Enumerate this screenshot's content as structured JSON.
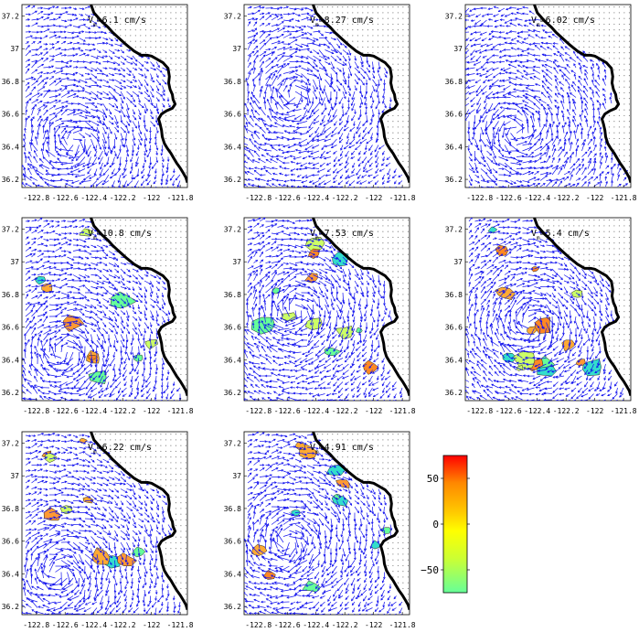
{
  "figure": {
    "x_ticks": [
      "-122.8",
      "-122.6",
      "-122.4",
      "-122.2",
      "-122",
      "-121.8"
    ],
    "y_ticks": [
      "37.2",
      "37",
      "36.8",
      "36.6",
      "36.4",
      "36.2"
    ],
    "x_values": [
      -122.8,
      -122.6,
      -122.4,
      -122.2,
      -122.0,
      -121.8
    ],
    "y_values": [
      37.2,
      37.0,
      36.8,
      36.6,
      36.4,
      36.2
    ],
    "lon_range": [
      -122.9,
      -121.75
    ],
    "lat_range": [
      36.15,
      37.27
    ],
    "speed_symbol": "V",
    "speed_subscript": "m",
    "vector_color": "#1111ee",
    "coast_color": "#000000"
  },
  "panels": [
    {
      "id": "p1",
      "vm_value": "=6.1 cm/s",
      "eddy_lon": -122.55,
      "eddy_lat": 36.42,
      "eddy_sense": 1,
      "patch_count": 0
    },
    {
      "id": "p2",
      "vm_value": "=8.27 cm/s",
      "eddy_lon": -122.55,
      "eddy_lat": 36.72,
      "eddy_sense": 1,
      "patch_count": 0
    },
    {
      "id": "p3",
      "vm_value": "=6.02 cm/s",
      "eddy_lon": -122.55,
      "eddy_lat": 36.5,
      "eddy_sense": -1,
      "patch_count": 0
    },
    {
      "id": "p4",
      "vm_value": "=10.8 cm/s",
      "eddy_lon": -122.6,
      "eddy_lat": 36.45,
      "eddy_sense": 1,
      "patch_count": 10
    },
    {
      "id": "p5",
      "vm_value": "=7.53 cm/s",
      "eddy_lon": -122.55,
      "eddy_lat": 36.7,
      "eddy_sense": 1,
      "patch_count": 12
    },
    {
      "id": "p6",
      "vm_value": "=5.4 cm/s",
      "eddy_lon": -122.45,
      "eddy_lat": 36.62,
      "eddy_sense": 1,
      "patch_count": 16
    },
    {
      "id": "p7",
      "vm_value": "=6.22 cm/s",
      "eddy_lon": -122.65,
      "eddy_lat": 36.4,
      "eddy_sense": 1,
      "patch_count": 10
    },
    {
      "id": "p8",
      "vm_value": "=4.91 cm/s",
      "eddy_lon": -122.6,
      "eddy_lat": 36.6,
      "eddy_sense": 1,
      "patch_count": 12
    }
  ],
  "colorbar": {
    "ticks": [
      "50",
      "0",
      "−50"
    ],
    "tick_values": [
      50,
      0,
      -50
    ],
    "range": [
      -75,
      75
    ],
    "stops": [
      "#ff0000",
      "#ff8800",
      "#ffcc00",
      "#ffff00",
      "#ccff33",
      "#66ff99"
    ]
  }
}
